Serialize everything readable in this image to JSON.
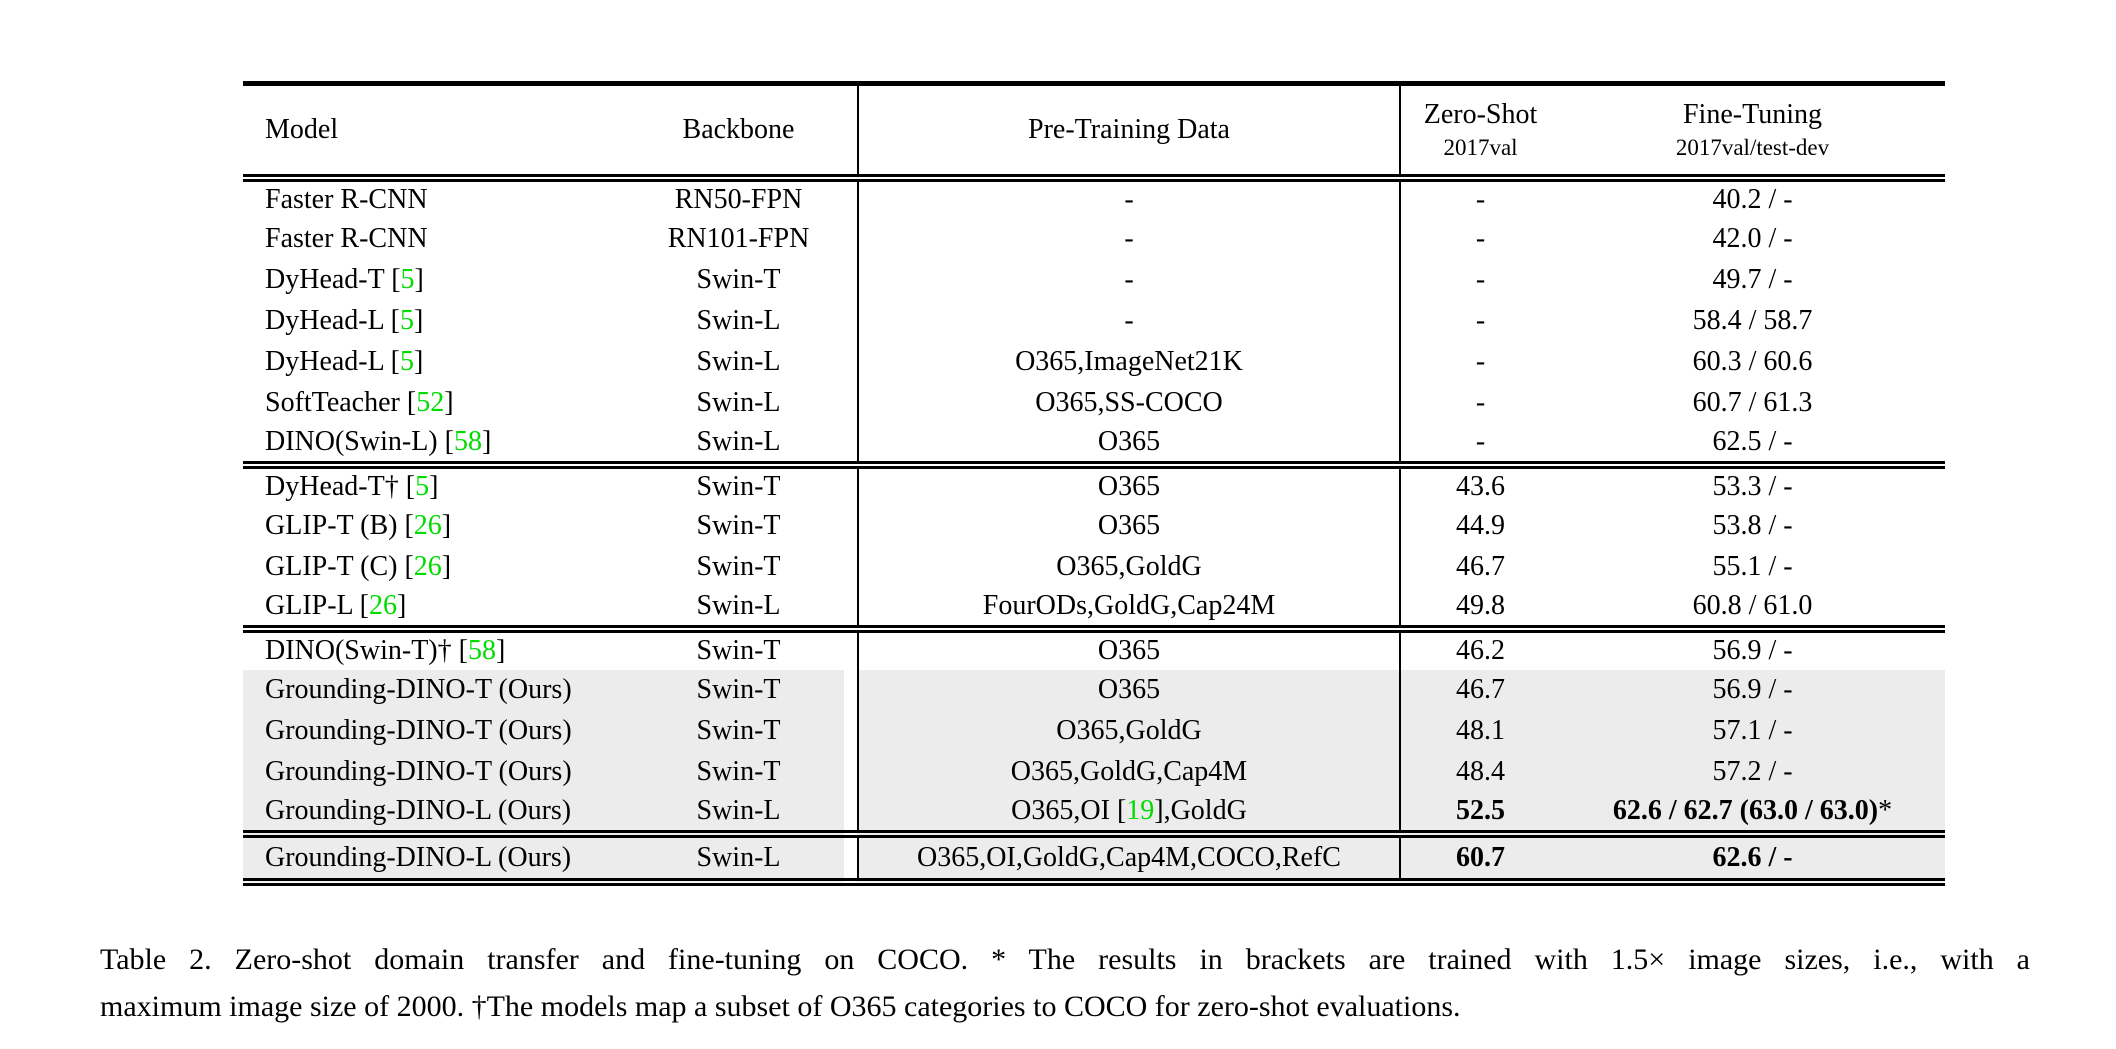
{
  "colors": {
    "citation_green": "#00DC00",
    "row_highlight_gray": "#ECECEC",
    "text": "#000000",
    "background": "#FFFFFF"
  },
  "header": {
    "columns": [
      {
        "label": "Model",
        "sublabel": ""
      },
      {
        "label": "Backbone",
        "sublabel": ""
      },
      {
        "label": "Pre-Training Data",
        "sublabel": ""
      },
      {
        "label": "Zero-Shot",
        "sublabel": "2017val"
      },
      {
        "label": "Fine-Tuning",
        "sublabel": "2017val/test-dev"
      }
    ]
  },
  "groups": [
    {
      "rows": [
        {
          "model": [
            "Faster R-CNN"
          ],
          "backbone": "RN50-FPN",
          "pretrain": [
            "-"
          ],
          "zeroshot": "-",
          "finetune": [
            "40.2 / -"
          ],
          "highlight": false,
          "bold_results": false
        },
        {
          "model": [
            "Faster R-CNN"
          ],
          "backbone": "RN101-FPN",
          "pretrain": [
            "-"
          ],
          "zeroshot": "-",
          "finetune": [
            "42.0 / -"
          ],
          "highlight": false,
          "bold_results": false
        },
        {
          "model": [
            "DyHead-T [",
            {
              "t": "5",
              "green": true
            },
            "]"
          ],
          "backbone": "Swin-T",
          "pretrain": [
            "-"
          ],
          "zeroshot": "-",
          "finetune": [
            "49.7 / -"
          ],
          "highlight": false,
          "bold_results": false
        },
        {
          "model": [
            "DyHead-L [",
            {
              "t": "5",
              "green": true
            },
            "]"
          ],
          "backbone": "Swin-L",
          "pretrain": [
            "-"
          ],
          "zeroshot": "-",
          "finetune": [
            "58.4 / 58.7"
          ],
          "highlight": false,
          "bold_results": false
        },
        {
          "model": [
            "DyHead-L [",
            {
              "t": "5",
              "green": true
            },
            "]"
          ],
          "backbone": "Swin-L",
          "pretrain": [
            "O365,ImageNet21K"
          ],
          "zeroshot": "-",
          "finetune": [
            "60.3 / 60.6"
          ],
          "highlight": false,
          "bold_results": false
        },
        {
          "model": [
            "SoftTeacher [",
            {
              "t": "52",
              "green": true
            },
            "]"
          ],
          "backbone": "Swin-L",
          "pretrain": [
            "O365,SS-COCO"
          ],
          "zeroshot": "-",
          "finetune": [
            "60.7 / 61.3"
          ],
          "highlight": false,
          "bold_results": false
        },
        {
          "model": [
            "DINO(Swin-L) [",
            {
              "t": "58",
              "green": true
            },
            "]"
          ],
          "backbone": "Swin-L",
          "pretrain": [
            "O365"
          ],
          "zeroshot": "-",
          "finetune": [
            "62.5 / -"
          ],
          "highlight": false,
          "bold_results": false
        }
      ]
    },
    {
      "rows": [
        {
          "model": [
            "DyHead-T† [",
            {
              "t": "5",
              "green": true
            },
            "]"
          ],
          "backbone": "Swin-T",
          "pretrain": [
            "O365"
          ],
          "zeroshot": "43.6",
          "finetune": [
            "53.3 / -"
          ],
          "highlight": false,
          "bold_results": false
        },
        {
          "model": [
            "GLIP-T (B) [",
            {
              "t": "26",
              "green": true
            },
            "]"
          ],
          "backbone": "Swin-T",
          "pretrain": [
            "O365"
          ],
          "zeroshot": "44.9",
          "finetune": [
            "53.8 / -"
          ],
          "highlight": false,
          "bold_results": false
        },
        {
          "model": [
            "GLIP-T (C) [",
            {
              "t": "26",
              "green": true
            },
            "]"
          ],
          "backbone": "Swin-T",
          "pretrain": [
            "O365,GoldG"
          ],
          "zeroshot": "46.7",
          "finetune": [
            "55.1 / -"
          ],
          "highlight": false,
          "bold_results": false
        },
        {
          "model": [
            "GLIP-L [",
            {
              "t": "26",
              "green": true
            },
            "]"
          ],
          "backbone": "Swin-L",
          "pretrain": [
            "FourODs,GoldG,Cap24M"
          ],
          "zeroshot": "49.8",
          "finetune": [
            "60.8 / 61.0"
          ],
          "highlight": false,
          "bold_results": false
        }
      ]
    },
    {
      "rows": [
        {
          "model": [
            "DINO(Swin-T)† [",
            {
              "t": "58",
              "green": true
            },
            "]"
          ],
          "backbone": "Swin-T",
          "pretrain": [
            "O365"
          ],
          "zeroshot": "46.2",
          "finetune": [
            "56.9 / -"
          ],
          "highlight": false,
          "bold_results": false
        },
        {
          "model": [
            "Grounding-DINO-T (Ours)"
          ],
          "backbone": "Swin-T",
          "pretrain": [
            "O365"
          ],
          "zeroshot": "46.7",
          "finetune": [
            "56.9 / -"
          ],
          "highlight": true,
          "bold_results": false
        },
        {
          "model": [
            "Grounding-DINO-T (Ours)"
          ],
          "backbone": "Swin-T",
          "pretrain": [
            "O365,GoldG"
          ],
          "zeroshot": "48.1",
          "finetune": [
            "57.1 / -"
          ],
          "highlight": true,
          "bold_results": false
        },
        {
          "model": [
            "Grounding-DINO-T (Ours)"
          ],
          "backbone": "Swin-T",
          "pretrain": [
            "O365,GoldG,Cap4M"
          ],
          "zeroshot": "48.4",
          "finetune": [
            "57.2 / -"
          ],
          "highlight": true,
          "bold_results": false
        },
        {
          "model": [
            "Grounding-DINO-L (Ours)"
          ],
          "backbone": "Swin-L",
          "pretrain": [
            "O365,OI [",
            {
              "t": "19",
              "green": true
            },
            "],GoldG"
          ],
          "zeroshot": "52.5",
          "finetune": [
            "62.6 / 62.7 (63.0 / 63.0)",
            {
              "t": "*",
              "plain": true
            }
          ],
          "highlight": true,
          "bold_results": true
        }
      ]
    },
    {
      "rows": [
        {
          "model": [
            "Grounding-DINO-L (Ours)"
          ],
          "backbone": "Swin-L",
          "pretrain": [
            "O365,OI,GoldG,Cap4M,COCO,RefC"
          ],
          "zeroshot": "60.7",
          "finetune": [
            "62.6 / -"
          ],
          "highlight": true,
          "bold_results": true
        }
      ]
    }
  ],
  "caption": {
    "line1": "Table 2.  Zero-shot domain transfer and fine-tuning on COCO.  * The results in brackets are trained with 1.5× image sizes, i.e., with a",
    "line2": "maximum image size of 2000. †The models map a subset of O365 categories to COCO for zero-shot evaluations."
  }
}
